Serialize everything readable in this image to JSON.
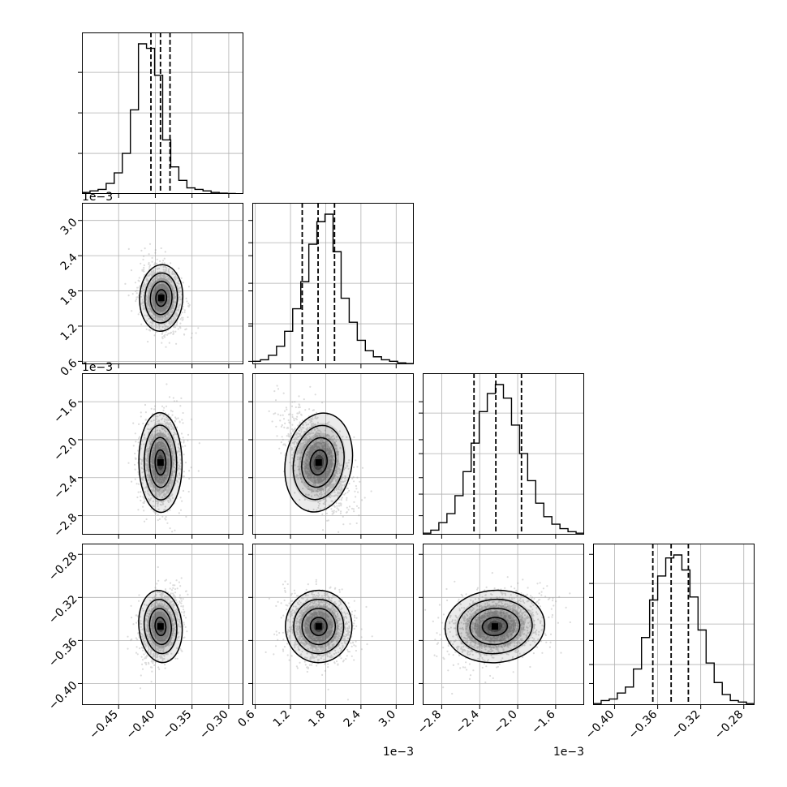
{
  "chart_data": {
    "type": "corner",
    "parameters": [
      {
        "range": [
          -0.5,
          -0.28
        ],
        "ticks": [
          -0.45,
          -0.4,
          -0.35,
          -0.3
        ],
        "tick_labels": [
          "−0.45",
          "−0.40",
          "−0.35",
          "−0.30"
        ],
        "quantiles": [
          -0.406,
          -0.393,
          -0.38
        ],
        "offset": ""
      },
      {
        "range": [
          0.55,
          3.3
        ],
        "ticks": [
          0.6,
          1.2,
          1.8,
          2.4,
          3.0
        ],
        "tick_labels": [
          "0.6",
          "1.2",
          "1.8",
          "2.4",
          "3.0"
        ],
        "quantiles": [
          1.4,
          1.67,
          1.95
        ],
        "offset": "1e−3"
      },
      {
        "range": [
          -3.0,
          -1.3
        ],
        "ticks": [
          -2.8,
          -2.4,
          -2.0,
          -1.6
        ],
        "tick_labels": [
          "−2.8",
          "−2.4",
          "−2.0",
          "−1.6"
        ],
        "quantiles": [
          -2.46,
          -2.23,
          -1.96
        ],
        "offset": "1e−3"
      },
      {
        "range": [
          -0.42,
          -0.27
        ],
        "ticks": [
          -0.4,
          -0.36,
          -0.32,
          -0.28
        ],
        "tick_labels": [
          "−0.40",
          "−0.36",
          "−0.32",
          "−0.28"
        ],
        "quantiles": [
          -0.3645,
          -0.3475,
          -0.3315
        ],
        "offset": ""
      }
    ],
    "histograms": [
      {
        "x_min": -0.5,
        "bin_width": 0.011,
        "counts": [
          0.01,
          0.02,
          0.03,
          0.07,
          0.14,
          0.27,
          0.56,
          1.0,
          0.97,
          0.79,
          0.36,
          0.18,
          0.09,
          0.04,
          0.03,
          0.02,
          0.01,
          0.005,
          0.003,
          0.001
        ]
      },
      {
        "x_min": 0.55,
        "bin_width": 0.1375,
        "counts": [
          0.02,
          0.03,
          0.06,
          0.12,
          0.22,
          0.37,
          0.55,
          0.8,
          0.95,
          1.0,
          0.75,
          0.44,
          0.28,
          0.16,
          0.09,
          0.05,
          0.03,
          0.02,
          0.01,
          0.005
        ]
      },
      {
        "x_min": -3.0,
        "bin_width": 0.085,
        "counts": [
          0.01,
          0.03,
          0.08,
          0.14,
          0.26,
          0.42,
          0.61,
          0.82,
          0.94,
          1.0,
          0.91,
          0.73,
          0.54,
          0.36,
          0.21,
          0.12,
          0.07,
          0.04,
          0.02,
          0.01
        ]
      },
      {
        "x_min": -0.42,
        "bin_width": 0.0075,
        "counts": [
          0.01,
          0.03,
          0.04,
          0.08,
          0.12,
          0.24,
          0.45,
          0.7,
          0.86,
          0.98,
          1.0,
          0.9,
          0.72,
          0.5,
          0.28,
          0.15,
          0.07,
          0.03,
          0.02,
          0.01
        ]
      }
    ],
    "pairs": [
      {
        "row": 1,
        "col": 0,
        "mean": [
          -0.392,
          1.68
        ],
        "sigma": [
          0.014,
          0.27
        ],
        "rho": -0.15
      },
      {
        "row": 2,
        "col": 0,
        "mean": [
          -0.393,
          -2.24
        ],
        "sigma": [
          0.014,
          0.25
        ],
        "rho": 0.05
      },
      {
        "row": 2,
        "col": 1,
        "mean": [
          1.68,
          -2.24
        ],
        "sigma": [
          0.27,
          0.25
        ],
        "rho": -0.55
      },
      {
        "row": 3,
        "col": 0,
        "mean": [
          -0.393,
          -0.347
        ],
        "sigma": [
          0.014,
          0.016
        ],
        "rho": 0.3
      },
      {
        "row": 3,
        "col": 1,
        "mean": [
          1.68,
          -0.347
        ],
        "sigma": [
          0.27,
          0.016
        ],
        "rho": -0.05
      },
      {
        "row": 3,
        "col": 2,
        "mean": [
          -2.24,
          -0.347
        ],
        "sigma": [
          0.25,
          0.016
        ],
        "rho": 0.25
      }
    ],
    "contour_levels_sigma": [
      0.5,
      1.0,
      1.5,
      2.0
    ],
    "grid": true,
    "colors": {
      "line": "#000000",
      "grid": "#b0b0b0",
      "points": "#9a9a9a",
      "density": "#000000"
    }
  }
}
